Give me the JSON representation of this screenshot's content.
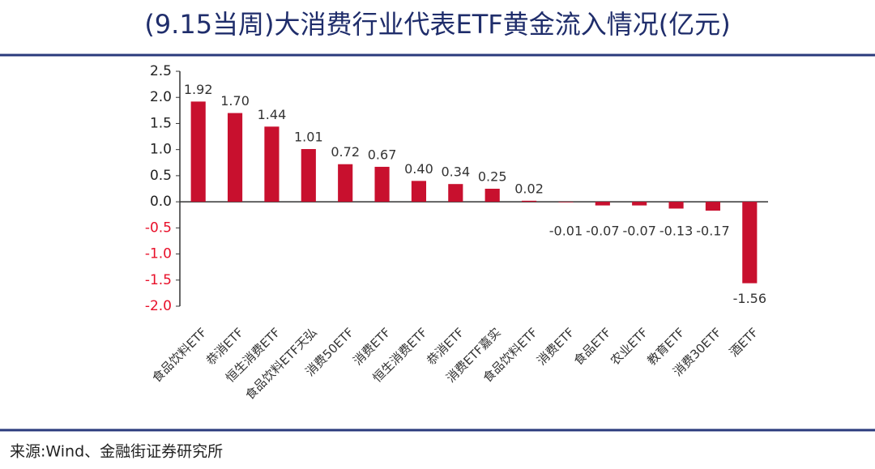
{
  "chart_data": {
    "type": "bar",
    "title": "(9.15当周)大消费行业代表ETF黄金流入情况(亿元)",
    "source": "来源:Wind、金融街证券研究所",
    "categories": [
      "食品饮料ETF",
      "恭消ETF",
      "恒生消费ETF",
      "食品饮料ETF天弘",
      "消费50ETF",
      "消费ETF",
      "恒生消费ETF",
      "恭消ETF",
      "消费ETF嘉实",
      "食品饮料ETF",
      "消费ETF",
      "食品ETF",
      "农业ETF",
      "教育ETF",
      "消费30ETF",
      "酒ETF"
    ],
    "values": [
      1.92,
      1.7,
      1.44,
      1.01,
      0.72,
      0.67,
      0.4,
      0.34,
      0.25,
      0.02,
      -0.01,
      -0.07,
      -0.07,
      -0.13,
      -0.17,
      -1.56
    ],
    "value_labels": [
      "1.92",
      "1.70",
      "1.44",
      "1.01",
      "0.72",
      "0.67",
      "0.40",
      "0.34",
      "0.25",
      "0.02",
      "-0.01",
      "-0.07",
      "-0.07",
      "-0.13",
      "-0.17",
      "-1.56"
    ],
    "color": "#c8102e",
    "negative_tick_color": "#e8102a",
    "ylim": [
      -2.0,
      2.5
    ],
    "yticks": [
      {
        "value": -2.0,
        "label": "-2.0"
      },
      {
        "value": -1.5,
        "label": "-1.5"
      },
      {
        "value": -1.0,
        "label": "-1.0"
      },
      {
        "value": -0.5,
        "label": "-0.5"
      },
      {
        "value": 0,
        "label": "0.0"
      },
      {
        "value": 0.5,
        "label": "0.5"
      },
      {
        "value": 1.0,
        "label": "1.0"
      },
      {
        "value": 1.5,
        "label": "1.5"
      },
      {
        "value": 2.0,
        "label": "2.0"
      },
      {
        "value": 2.5,
        "label": "2.5"
      }
    ],
    "grid": false
  }
}
